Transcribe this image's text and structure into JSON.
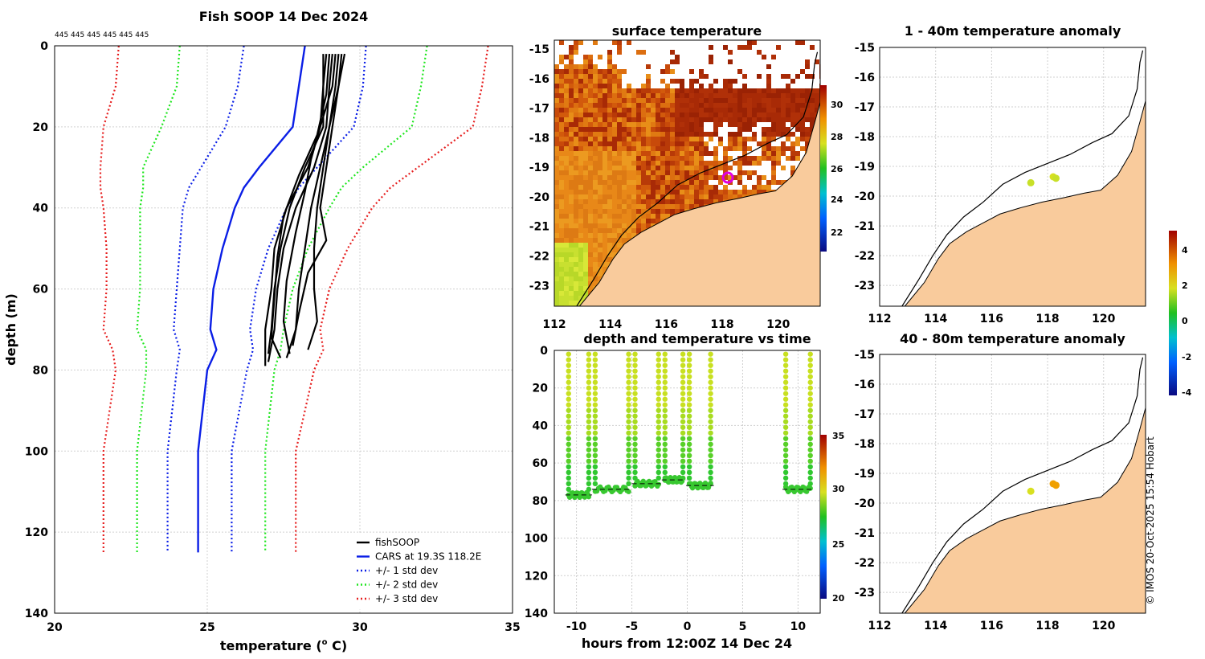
{
  "chart_data": [
    {
      "type": "line",
      "title": "Fish SOOP 14 Dec 2024",
      "top_note": "445 445 445 445 445 445",
      "xlabel": "temperature (",
      "xlabel_sup": "o",
      "xlabel_tail": " C)",
      "ylabel": "depth (m)",
      "xlim": [
        20,
        35
      ],
      "ylim": [
        140,
        0
      ],
      "xticks": [
        "20",
        "25",
        "30",
        "35"
      ],
      "yticks": [
        "0",
        "20",
        "40",
        "60",
        "80",
        "100",
        "120",
        "140"
      ],
      "legend": [
        "fishSOOP",
        "CARS at 19.3S 118.2E",
        "+/- 1 std dev",
        "+/- 2 std dev",
        "+/- 3 std dev"
      ],
      "colors": {
        "fish": "#000000",
        "cars": "#0a1ee6",
        "std1": "#0a1ee6",
        "std2": "#1ee61e",
        "std3": "#e61e1e"
      },
      "depth": [
        0,
        10,
        20,
        30,
        35,
        40,
        50,
        60,
        70,
        75,
        80,
        100,
        125
      ],
      "series": [
        {
          "name": "CARS",
          "values": [
            28.2,
            28.0,
            27.8,
            26.7,
            26.2,
            25.9,
            25.5,
            25.2,
            25.1,
            25.3,
            25.0,
            24.7,
            24.7
          ]
        },
        {
          "name": "+1",
          "values": [
            30.2,
            30.1,
            29.8,
            28.6,
            28.0,
            27.6,
            27.0,
            26.6,
            26.4,
            26.5,
            26.3,
            25.8,
            25.8
          ]
        },
        {
          "name": "-1",
          "values": [
            26.2,
            26.0,
            25.6,
            24.8,
            24.4,
            24.2,
            24.1,
            24.0,
            23.9,
            24.1,
            24.0,
            23.7,
            23.7
          ]
        },
        {
          "name": "+2",
          "values": [
            32.2,
            32.0,
            31.7,
            30.1,
            29.4,
            29.0,
            28.3,
            27.8,
            27.5,
            27.4,
            27.2,
            26.9,
            26.9
          ]
        },
        {
          "name": "-2",
          "values": [
            24.1,
            24.0,
            23.5,
            22.9,
            22.9,
            22.8,
            22.8,
            22.8,
            22.7,
            23.0,
            23.0,
            22.7,
            22.7
          ]
        },
        {
          "name": "+3",
          "values": [
            34.2,
            34.0,
            33.7,
            31.9,
            31.0,
            30.4,
            29.6,
            29.0,
            28.7,
            28.8,
            28.5,
            27.9,
            27.9
          ]
        },
        {
          "name": "-3",
          "values": [
            22.1,
            22.0,
            21.6,
            21.5,
            21.5,
            21.6,
            21.7,
            21.7,
            21.6,
            21.9,
            22.0,
            21.6,
            21.6
          ]
        }
      ],
      "fish_profiles": [
        {
          "depth": [
            2,
            10,
            20,
            30,
            40,
            50,
            60,
            70,
            78
          ],
          "temp": [
            29.1,
            29.0,
            28.9,
            28.5,
            27.9,
            27.5,
            27.3,
            27.2,
            27.0
          ]
        },
        {
          "depth": [
            2,
            10,
            20,
            30,
            40,
            50,
            60,
            70,
            77
          ],
          "temp": [
            29.3,
            29.2,
            29.0,
            28.7,
            28.4,
            28.2,
            28.0,
            27.9,
            27.6
          ]
        },
        {
          "depth": [
            2,
            10,
            20,
            30,
            40,
            50,
            60,
            68,
            75
          ],
          "temp": [
            29.5,
            29.3,
            29.0,
            28.8,
            28.6,
            28.5,
            28.5,
            28.6,
            28.3
          ]
        },
        {
          "depth": [
            2,
            10,
            20,
            30,
            40,
            50,
            60,
            70,
            76
          ],
          "temp": [
            28.9,
            28.8,
            28.8,
            28.2,
            27.7,
            27.4,
            27.2,
            27.1,
            27.0
          ]
        },
        {
          "depth": [
            2,
            10,
            20,
            30,
            40,
            50,
            60,
            70,
            79
          ],
          "temp": [
            29.2,
            29.1,
            28.7,
            28.3,
            27.6,
            27.2,
            27.1,
            26.9,
            26.9
          ]
        },
        {
          "depth": [
            2,
            12,
            22,
            32,
            42,
            52,
            62,
            72,
            77
          ],
          "temp": [
            29.0,
            28.9,
            28.6,
            28.0,
            27.5,
            27.3,
            27.2,
            27.1,
            27.4
          ]
        },
        {
          "depth": [
            2,
            10,
            20,
            30,
            40,
            48,
            56,
            66,
            74
          ],
          "temp": [
            29.4,
            29.3,
            29.1,
            28.9,
            28.7,
            28.9,
            28.3,
            28.0,
            27.8
          ]
        },
        {
          "depth": [
            2,
            10,
            20,
            28,
            36,
            46,
            58,
            68,
            76
          ],
          "temp": [
            28.8,
            28.8,
            28.7,
            28.4,
            28.2,
            27.9,
            27.6,
            27.5,
            27.7
          ]
        }
      ]
    },
    {
      "type": "heatmap",
      "title": "surface temperature",
      "xticks": [
        "112",
        "114",
        "116",
        "118",
        "120"
      ],
      "yticks": [
        "-15",
        "-16",
        "-17",
        "-18",
        "-19",
        "-20",
        "-21",
        "-22",
        "-23"
      ],
      "colorbar_ticks": [
        "30",
        "28",
        "26",
        "24",
        "22"
      ]
    },
    {
      "type": "scatter",
      "title": "depth and temperature vs time",
      "xlabel": "hours from 12:00Z 14 Dec 24",
      "xlim": [
        -12,
        12
      ],
      "ylim": [
        140,
        0
      ],
      "xticks": [
        "-10",
        "-5",
        "0",
        "5",
        "10"
      ],
      "yticks": [
        "0",
        "20",
        "40",
        "60",
        "80",
        "100",
        "120",
        "140"
      ],
      "colorbar_ticks": [
        "35",
        "30",
        "25",
        "20"
      ],
      "dives": [
        {
          "start": -11.0,
          "end": -8.6,
          "bottom": 77
        },
        {
          "start": -8.6,
          "end": -5.0,
          "bottom": 74
        },
        {
          "start": -5.0,
          "end": -2.3,
          "bottom": 71
        },
        {
          "start": -2.3,
          "end": -0.1,
          "bottom": 69
        },
        {
          "start": -0.1,
          "end": 2.4,
          "bottom": 72
        },
        {
          "start": 8.6,
          "end": 11.4,
          "bottom": 74
        }
      ]
    },
    {
      "type": "scatter",
      "title": "1 - 40m temperature anomaly",
      "xticks": [
        "112",
        "114",
        "116",
        "118",
        "120"
      ],
      "yticks": [
        "-15",
        "-16",
        "-17",
        "-18",
        "-19",
        "-20",
        "-21",
        "-22",
        "-23"
      ],
      "colorbar_ticks": [
        "4",
        "2",
        "0",
        "-2",
        "-4"
      ],
      "points": [
        {
          "lon": 117.4,
          "lat": -19.55,
          "anom": 1.4
        },
        {
          "lon": 118.2,
          "lat": -19.35,
          "anom": 1.6
        },
        {
          "lon": 118.3,
          "lat": -19.4,
          "anom": 1.5
        }
      ]
    },
    {
      "type": "scatter",
      "title": "40 - 80m temperature anomaly",
      "xticks": [
        "112",
        "114",
        "116",
        "118",
        "120"
      ],
      "yticks": [
        "-15",
        "-16",
        "-17",
        "-18",
        "-19",
        "-20",
        "-21",
        "-22",
        "-23"
      ],
      "points": [
        {
          "lon": 117.4,
          "lat": -19.6,
          "anom": 1.7
        },
        {
          "lon": 118.2,
          "lat": -19.35,
          "anom": 2.8
        },
        {
          "lon": 118.3,
          "lat": -19.4,
          "anom": 2.6
        }
      ]
    }
  ],
  "credit": "© IMOS 20-Oct-2025 15:54 Hobart"
}
